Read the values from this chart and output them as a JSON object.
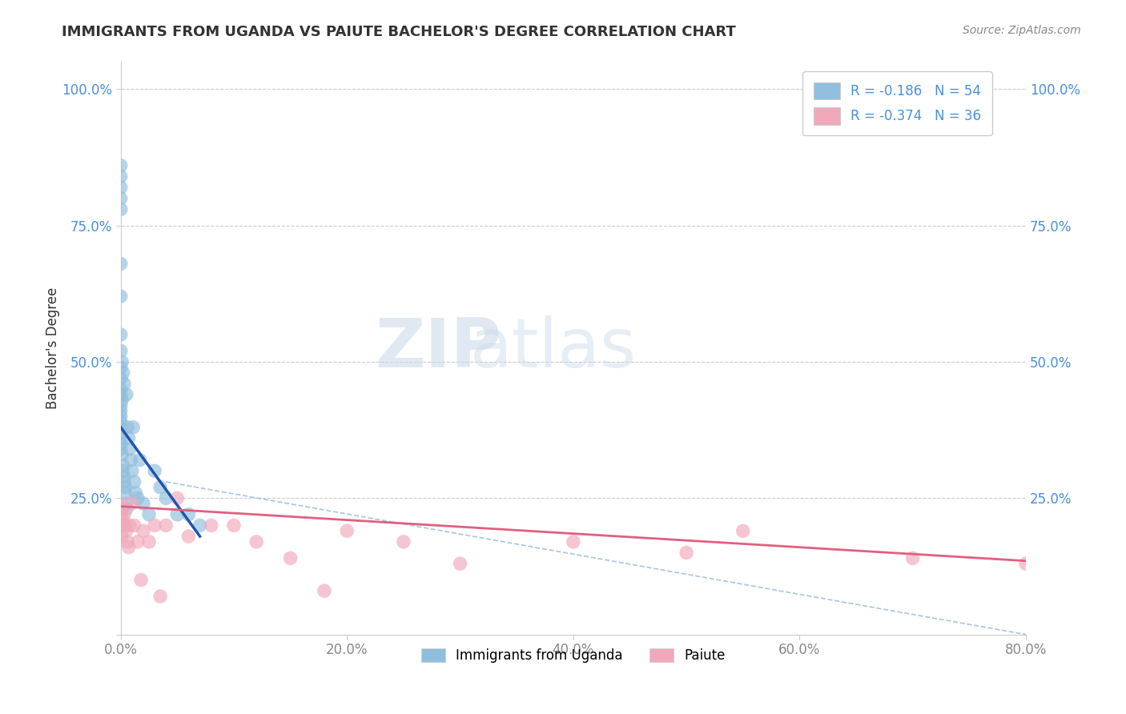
{
  "title": "IMMIGRANTS FROM UGANDA VS PAIUTE BACHELOR'S DEGREE CORRELATION CHART",
  "source_text": "Source: ZipAtlas.com",
  "ylabel": "Bachelor's Degree",
  "xlabel": "",
  "legend_entries": [
    {
      "label": "R = -0.186   N = 54",
      "color": "#aec6e8"
    },
    {
      "label": "R = -0.374   N = 36",
      "color": "#f4b8c1"
    }
  ],
  "legend_bottom": [
    "Immigrants from Uganda",
    "Paiute"
  ],
  "watermark_zip": "ZIP",
  "watermark_atlas": "atlas",
  "blue_scatter_x": [
    0.0,
    0.0,
    0.0,
    0.0,
    0.0,
    0.0,
    0.0,
    0.0,
    0.0,
    0.0,
    0.0,
    0.0,
    0.0,
    0.0,
    0.0,
    0.0,
    0.0,
    0.0,
    0.0,
    0.0,
    0.0,
    0.001,
    0.001,
    0.002,
    0.002,
    0.003,
    0.003,
    0.004,
    0.004,
    0.005,
    0.005,
    0.006,
    0.007,
    0.008,
    0.009,
    0.01,
    0.011,
    0.012,
    0.013,
    0.015,
    0.017,
    0.02,
    0.025,
    0.03,
    0.035,
    0.04,
    0.05,
    0.06,
    0.07,
    0.005,
    0.003,
    0.002,
    0.001,
    0.0
  ],
  "blue_scatter_y": [
    0.86,
    0.84,
    0.82,
    0.8,
    0.78,
    0.62,
    0.55,
    0.52,
    0.49,
    0.47,
    0.45,
    0.44,
    0.42,
    0.41,
    0.4,
    0.39,
    0.38,
    0.37,
    0.36,
    0.35,
    0.34,
    0.43,
    0.33,
    0.31,
    0.3,
    0.29,
    0.28,
    0.27,
    0.26,
    0.24,
    0.23,
    0.38,
    0.36,
    0.34,
    0.32,
    0.3,
    0.38,
    0.28,
    0.26,
    0.25,
    0.32,
    0.24,
    0.22,
    0.3,
    0.27,
    0.25,
    0.22,
    0.22,
    0.2,
    0.44,
    0.46,
    0.48,
    0.5,
    0.68
  ],
  "pink_scatter_x": [
    0.0,
    0.0,
    0.0,
    0.001,
    0.001,
    0.002,
    0.003,
    0.004,
    0.005,
    0.006,
    0.007,
    0.008,
    0.01,
    0.012,
    0.015,
    0.018,
    0.02,
    0.025,
    0.03,
    0.035,
    0.04,
    0.05,
    0.06,
    0.08,
    0.1,
    0.12,
    0.15,
    0.18,
    0.2,
    0.25,
    0.3,
    0.4,
    0.5,
    0.55,
    0.7,
    0.8
  ],
  "pink_scatter_y": [
    0.24,
    0.22,
    0.2,
    0.23,
    0.18,
    0.21,
    0.22,
    0.2,
    0.19,
    0.17,
    0.16,
    0.2,
    0.24,
    0.2,
    0.17,
    0.1,
    0.19,
    0.17,
    0.2,
    0.07,
    0.2,
    0.25,
    0.18,
    0.2,
    0.2,
    0.17,
    0.14,
    0.08,
    0.19,
    0.17,
    0.13,
    0.17,
    0.15,
    0.19,
    0.14,
    0.13
  ],
  "blue_line_x": [
    0.0,
    0.07
  ],
  "blue_line_y": [
    0.38,
    0.18
  ],
  "pink_line_x": [
    0.0,
    0.8
  ],
  "pink_line_y": [
    0.235,
    0.135
  ],
  "dashed_line_x": [
    0.04,
    0.8
  ],
  "dashed_line_y": [
    0.28,
    0.0
  ],
  "xlim": [
    0.0,
    0.8
  ],
  "ylim": [
    0.0,
    1.05
  ],
  "xtick_positions": [
    0.0,
    0.2,
    0.4,
    0.6,
    0.8
  ],
  "xticklabels": [
    "0.0%",
    "20.0%",
    "40.0%",
    "60.0%",
    "80.0%"
  ],
  "ytick_positions": [
    0.0,
    0.25,
    0.5,
    0.75,
    1.0
  ],
  "yticklabels_left": [
    "",
    "25.0%",
    "50.0%",
    "75.0%",
    "100.0%"
  ],
  "yticklabels_right": [
    "",
    "25.0%",
    "50.0%",
    "75.0%",
    "100.0%"
  ],
  "grid_color": "#cccccc",
  "blue_color": "#90bedd",
  "pink_color": "#f0a8ba",
  "blue_line_color": "#2255aa",
  "pink_line_color": "#e06080",
  "dashed_color": "#99bbdd",
  "bg_color": "#ffffff",
  "title_color": "#333333",
  "source_color": "#888888",
  "axis_color": "#888888",
  "tick_label_color": "#4a90d9"
}
